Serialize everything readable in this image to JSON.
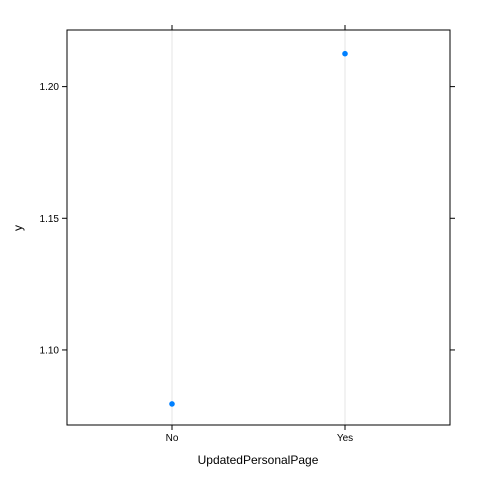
{
  "chart_data": {
    "type": "scatter",
    "xlabel": "UpdatedPersonalPage",
    "ylabel": "y",
    "categories": [
      "No",
      "Yes"
    ],
    "series": [
      {
        "values": [
          1.0795,
          1.2125
        ]
      }
    ],
    "ylim": [
      1.0715,
      1.2215
    ],
    "yticks": [
      1.1,
      1.15,
      1.2
    ],
    "ytick_labels": [
      "1.10",
      "1.15",
      "1.20"
    ],
    "grid": "vertical-at-categories",
    "legend": "none",
    "colors": {
      "point": "#0080ff",
      "gridline": "#e6e6e6",
      "frame": "#000000"
    }
  }
}
